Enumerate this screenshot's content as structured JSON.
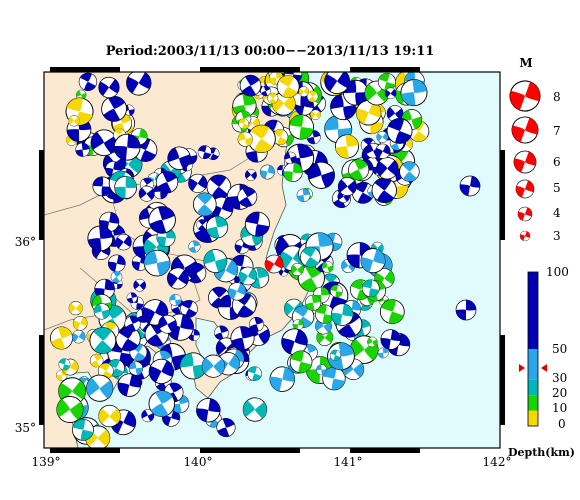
{
  "title": "Period:2003/11/13 00:00−−2013/11/13 19:11",
  "x_ticks": [
    "139°",
    "140°",
    "141°",
    "142°"
  ],
  "y_ticks": [
    "36°",
    "35°"
  ],
  "magnitude_legend": {
    "heading": "M",
    "entries": [
      "8",
      "7",
      "6",
      "5",
      "4",
      "3"
    ]
  },
  "depth_scale": {
    "label": "Depth(km)",
    "ticks": [
      "100",
      "50",
      "30",
      "20",
      "10",
      "0"
    ],
    "bands": [
      {
        "from": 0,
        "to": 10,
        "color": "#f5d800"
      },
      {
        "from": 10,
        "to": 20,
        "color": "#19d400"
      },
      {
        "from": 20,
        "to": 30,
        "color": "#00b7b7"
      },
      {
        "from": 30,
        "to": 50,
        "color": "#2aa7e8"
      },
      {
        "from": 50,
        "to": 100,
        "color": "#0000b4"
      }
    ]
  },
  "colors": {
    "land": "#fbe9d2",
    "sea": "#e0fbfb",
    "mechanism": "#ff0000",
    "frame": "#000000"
  }
}
